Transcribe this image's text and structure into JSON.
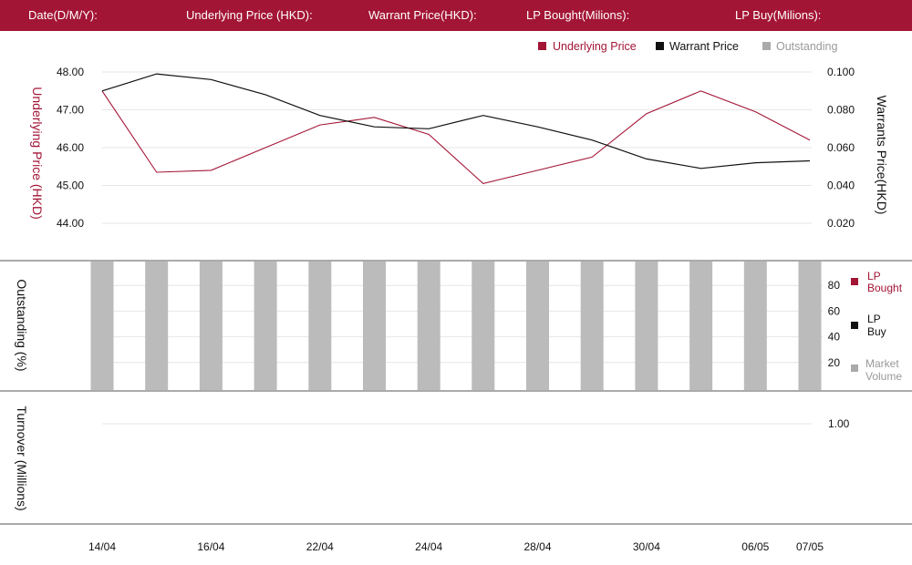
{
  "header": {
    "date_label": "Date(D/M/Y):",
    "underlying_label": "Underlying Price (HKD):",
    "warrant_label": "Warrant  Price(HKD):",
    "lp_bought_label": "LP Bought(Milions):",
    "lp_buy_label": "LP Buy(Milions):"
  },
  "colors": {
    "accent": "#a31535",
    "warrant": "#111111",
    "outstanding": "#bbbbbb",
    "grid": "#e6e6e6",
    "divider": "#555555"
  },
  "chart_data": [
    {
      "type": "line",
      "panel": "price",
      "legend": {
        "placement": "top-right",
        "entries": [
          "Underlying Price",
          "Warrant  Price",
          "Outstanding"
        ]
      },
      "ylabel_left": "Underlying Price (HKD)",
      "ylabel_right": "Warrants  Price(HKD)",
      "y_left_ticks": [
        "48.00",
        "47.00",
        "46.00",
        "45.00",
        "44.00"
      ],
      "y_right_ticks": [
        "0.100",
        "0.080",
        "0.060",
        "0.040",
        "0.020"
      ],
      "y_left_range": [
        44,
        48
      ],
      "y_right_range": [
        0.02,
        0.1
      ],
      "series": [
        {
          "name": "Underlying Price",
          "axis": "left",
          "values": [
            47.5,
            45.35,
            45.4,
            46.0,
            46.6,
            46.8,
            46.35,
            45.05,
            45.4,
            45.75,
            46.9,
            47.5,
            46.95,
            46.2
          ]
        },
        {
          "name": "Warrant  Price",
          "axis": "right",
          "values": [
            0.09,
            0.099,
            0.096,
            0.088,
            0.077,
            0.071,
            0.07,
            0.077,
            0.071,
            0.064,
            0.054,
            0.049,
            0.052,
            0.053
          ]
        }
      ],
      "grid": true
    },
    {
      "type": "bar",
      "panel": "outstanding",
      "ylabel": "Outstanding (%)",
      "y_ticks": [
        "80",
        "60",
        "40",
        "20"
      ],
      "y_range": [
        0,
        100
      ],
      "legend": {
        "placement": "right",
        "entries": [
          [
            "LP",
            "Bought"
          ],
          [
            "LP",
            "Buy"
          ],
          [
            "Market",
            "Volume"
          ]
        ]
      },
      "series": [
        {
          "name": "Outstanding",
          "values": [
            100,
            100,
            100,
            100,
            100,
            100,
            100,
            100,
            100,
            100,
            100,
            100,
            100,
            100
          ]
        }
      ],
      "grid": true
    },
    {
      "type": "bar",
      "panel": "turnover",
      "ylabel": "Turnover (Millions)",
      "y_ticks": [
        "1.00"
      ],
      "series": [],
      "grid": true
    }
  ],
  "x_axis": {
    "labels": [
      "14/04",
      "16/04",
      "22/04",
      "24/04",
      "28/04",
      "30/04",
      "06/05",
      "07/05"
    ],
    "label_points": [
      0,
      2,
      4,
      6,
      8,
      10,
      12,
      13
    ]
  }
}
